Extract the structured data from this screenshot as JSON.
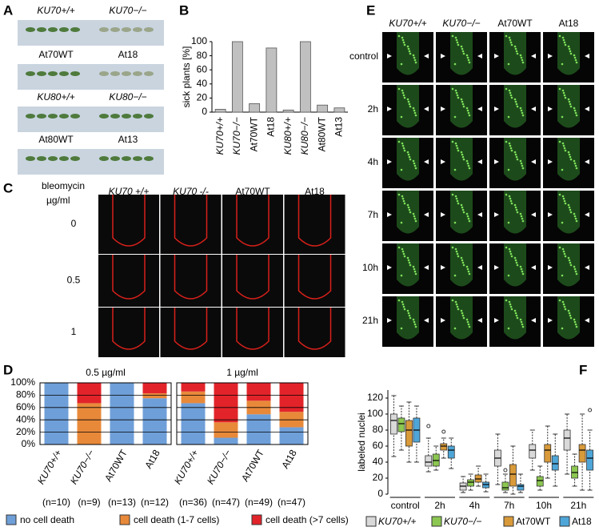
{
  "panel_labels": [
    "A",
    "B",
    "C",
    "D",
    "E",
    "F"
  ],
  "panel_a": {
    "labels": [
      "KU70+/+",
      "KU70−/−",
      "At70WT",
      "At18",
      "KU80+/+",
      "KU80−/−",
      "At80WT",
      "At13"
    ]
  },
  "panel_c": {
    "title": "bleomycin",
    "unit": "µg/ml",
    "columns": [
      "KU70 +/+",
      "KU70 -/-",
      "At70WT",
      "At18"
    ],
    "rows": [
      "0",
      "0.5",
      "1"
    ]
  },
  "panel_e": {
    "columns": [
      "KU70+/+",
      "KU70−/−",
      "At70WT",
      "At18"
    ],
    "rows": [
      "control",
      "2h",
      "4h",
      "7h",
      "10h",
      "21h"
    ]
  },
  "chart_data": [
    {
      "type": "bar",
      "ylabel": "sick plants [%]",
      "categories": [
        "KU70+/+",
        "KU70−/−",
        "At70WT",
        "At18",
        "KU80+/+",
        "KU80−/−",
        "At80WT",
        "At13"
      ],
      "values": [
        4,
        100,
        12,
        91,
        3,
        100,
        10,
        6
      ],
      "color": "#c0c0c0",
      "ylim": [
        0,
        100
      ],
      "yticks": [
        0,
        20,
        40,
        60,
        80,
        100
      ]
    },
    {
      "type": "stacked_bar",
      "group_titles": [
        "0.5 µg/ml",
        "1 µg/ml"
      ],
      "categories": [
        "KU70+/+",
        "KU70−/−",
        "At70WT",
        "At18",
        "KU70+/+",
        "KU70−/−",
        "At70WT",
        "At18"
      ],
      "n_labels": [
        "(n=10)",
        "(n=9)",
        "(n=13)",
        "(n=12)",
        "(n=36)",
        "(n=47)",
        "(n=49)",
        "(n=47)"
      ],
      "series": [
        {
          "name": "no cell death",
          "color": "#6f9fd8",
          "values": [
            100,
            0,
            100,
            75,
            67,
            11,
            49,
            28
          ]
        },
        {
          "name": "cell death (1-7 cells)",
          "color": "#e8893a",
          "values": [
            0,
            67,
            0,
            8,
            19,
            25,
            22,
            25
          ]
        },
        {
          "name": "cell death (>7 cells)",
          "color": "#e2242a",
          "values": [
            0,
            33,
            0,
            17,
            14,
            64,
            29,
            47
          ]
        }
      ],
      "ylim": [
        0,
        100
      ],
      "yticks": [
        {
          "value": 0,
          "label": "0%"
        },
        {
          "value": 20,
          "label": "20%"
        },
        {
          "value": 40,
          "label": "40%"
        },
        {
          "value": 60,
          "label": "60%"
        },
        {
          "value": 80,
          "label": "80%"
        },
        {
          "value": 100,
          "label": "100%"
        }
      ],
      "grid": true
    },
    {
      "type": "box",
      "ylabel": "labeled nuclei",
      "categories": [
        "control",
        "2h",
        "4h",
        "7h",
        "10h",
        "21h"
      ],
      "series": [
        {
          "name": "KU70+/+",
          "color": "#d9d9d9",
          "min": [
            47,
            28,
            2,
            12,
            30,
            25
          ],
          "q1": [
            75,
            35,
            5,
            35,
            45,
            55
          ],
          "median": [
            92,
            40,
            10,
            45,
            55,
            70
          ],
          "q3": [
            100,
            48,
            14,
            55,
            62,
            80
          ],
          "max": [
            123,
            70,
            22,
            75,
            80,
            100
          ],
          "outliers": [
            [],
            [
              85
            ],
            [],
            [],
            [],
            []
          ]
        },
        {
          "name": "KU70−/−",
          "color": "#8cc751",
          "min": [
            55,
            30,
            5,
            2,
            5,
            10
          ],
          "q1": [
            78,
            35,
            10,
            5,
            10,
            20
          ],
          "median": [
            88,
            42,
            15,
            8,
            17,
            27
          ],
          "q3": [
            95,
            50,
            18,
            15,
            22,
            35
          ],
          "max": [
            110,
            60,
            25,
            25,
            35,
            50
          ],
          "outliers": [
            [],
            [],
            [],
            [
              30
            ],
            [],
            []
          ]
        },
        {
          "name": "At70WT",
          "color": "#d99a3a",
          "min": [
            40,
            45,
            10,
            0,
            20,
            5
          ],
          "q1": [
            60,
            55,
            15,
            10,
            40,
            40
          ],
          "median": [
            80,
            60,
            19,
            25,
            55,
            55
          ],
          "q3": [
            92,
            63,
            24,
            37,
            62,
            62
          ],
          "max": [
            115,
            70,
            35,
            60,
            85,
            100
          ],
          "outliers": [
            [],
            [
              78
            ],
            [],
            [],
            [],
            []
          ]
        },
        {
          "name": "At18",
          "color": "#4ea6d8",
          "min": [
            40,
            32,
            3,
            2,
            10,
            5
          ],
          "q1": [
            65,
            45,
            8,
            5,
            30,
            30
          ],
          "median": [
            80,
            55,
            12,
            10,
            38,
            45
          ],
          "q3": [
            95,
            60,
            15,
            12,
            48,
            55
          ],
          "max": [
            110,
            70,
            25,
            25,
            75,
            80
          ],
          "outliers": [
            [],
            [],
            [],
            [],
            [],
            [
              105
            ]
          ]
        }
      ],
      "ylim": [
        0,
        130
      ],
      "yticks": [
        0,
        20,
        40,
        60,
        80,
        100,
        120
      ]
    }
  ]
}
